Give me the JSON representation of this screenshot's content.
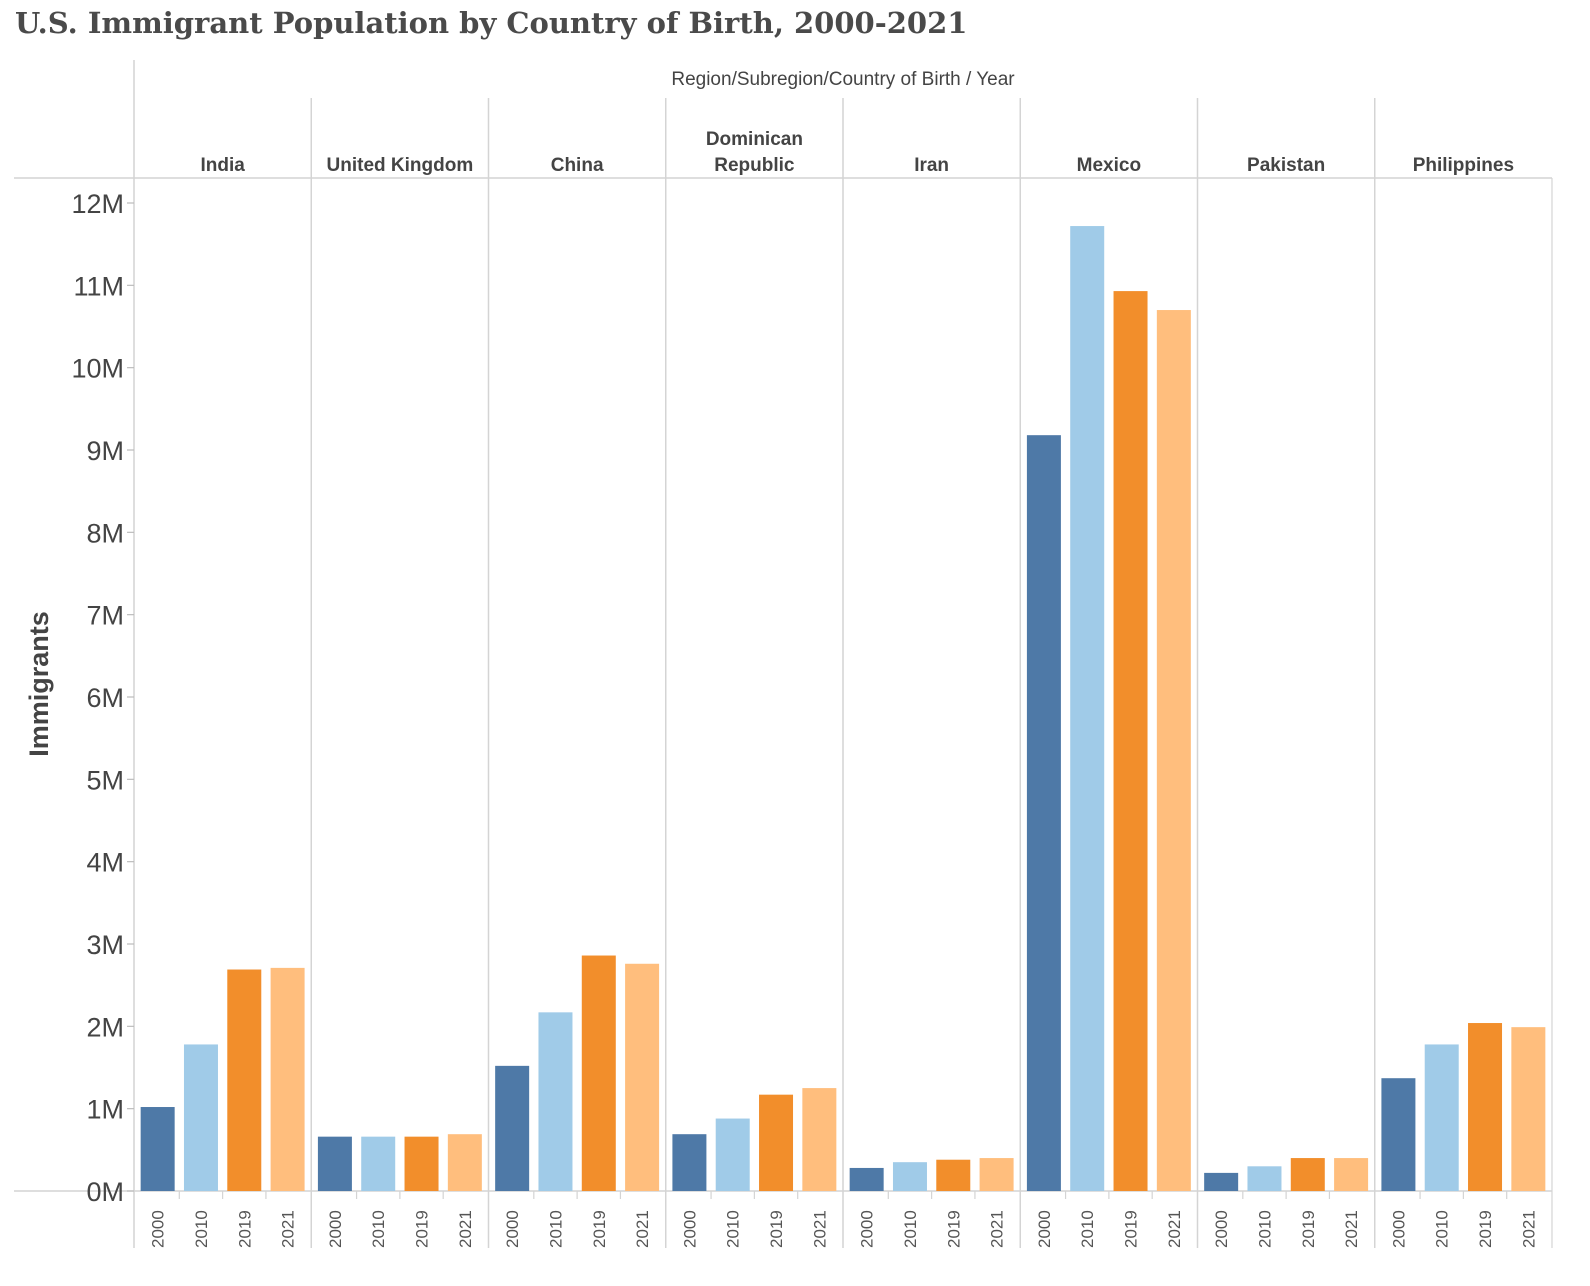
{
  "title": "U.S. Immigrant Population by Country of Birth, 2000-2021",
  "chart_data": {
    "type": "bar",
    "column_header": "Region/Subregion/Country of Birth  /  Year",
    "ylabel": "Immigrants",
    "ylim": [
      0,
      12000000
    ],
    "yticks": [
      {
        "value": 0,
        "label": "0M"
      },
      {
        "value": 1000000,
        "label": "1M"
      },
      {
        "value": 2000000,
        "label": "2M"
      },
      {
        "value": 3000000,
        "label": "3M"
      },
      {
        "value": 4000000,
        "label": "4M"
      },
      {
        "value": 5000000,
        "label": "5M"
      },
      {
        "value": 6000000,
        "label": "6M"
      },
      {
        "value": 7000000,
        "label": "7M"
      },
      {
        "value": 8000000,
        "label": "8M"
      },
      {
        "value": 9000000,
        "label": "9M"
      },
      {
        "value": 10000000,
        "label": "10M"
      },
      {
        "value": 11000000,
        "label": "11M"
      },
      {
        "value": 12000000,
        "label": "12M"
      }
    ],
    "years": [
      "2000",
      "2010",
      "2019",
      "2021"
    ],
    "year_colors": [
      "#4e79a7",
      "#a0cbe8",
      "#f28e2b",
      "#ffbe7d"
    ],
    "groups": [
      {
        "name": "India",
        "values": [
          1020000,
          1780000,
          2690000,
          2710000
        ]
      },
      {
        "name": "United Kingdom",
        "values": [
          660000,
          660000,
          660000,
          690000
        ]
      },
      {
        "name": "China",
        "values": [
          1520000,
          2170000,
          2860000,
          2760000
        ]
      },
      {
        "name": "Dominican Republic",
        "name_lines": [
          "Dominican",
          "Republic"
        ],
        "values": [
          690000,
          880000,
          1170000,
          1250000
        ]
      },
      {
        "name": "Iran",
        "values": [
          280000,
          350000,
          380000,
          400000
        ]
      },
      {
        "name": "Mexico",
        "values": [
          9180000,
          11720000,
          10930000,
          10700000
        ]
      },
      {
        "name": "Pakistan",
        "values": [
          220000,
          300000,
          400000,
          400000
        ]
      },
      {
        "name": "Philippines",
        "values": [
          1370000,
          1780000,
          2040000,
          1990000
        ]
      }
    ]
  }
}
